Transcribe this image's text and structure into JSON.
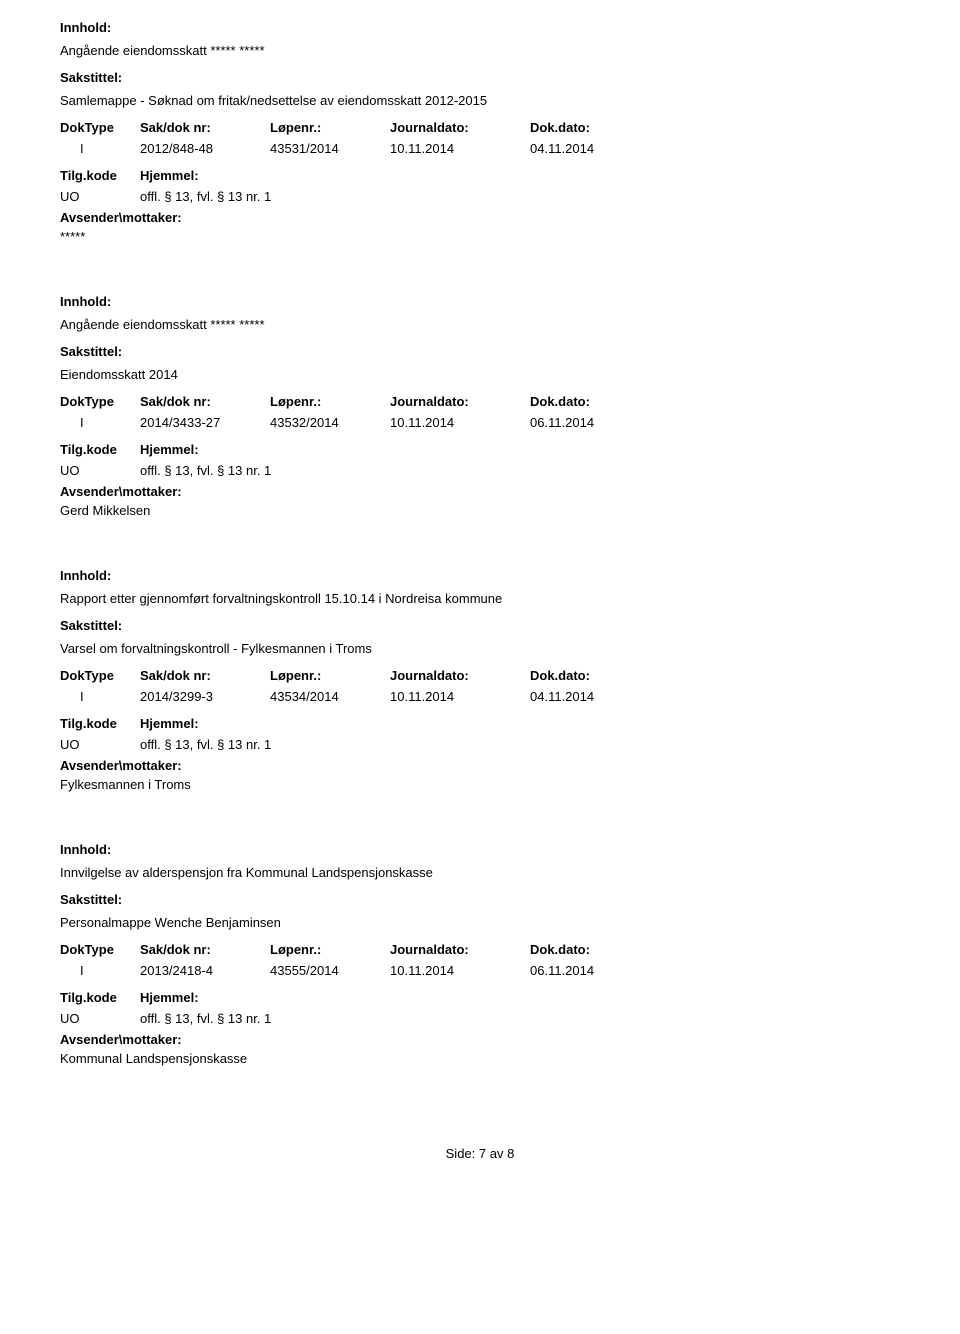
{
  "labels": {
    "innhold": "Innhold:",
    "sakstittel": "Sakstittel:",
    "doktype": "DokType",
    "sakdoknr": "Sak/dok nr:",
    "lopenr": "Løpenr.:",
    "journaldato": "Journaldato:",
    "dokdato": "Dok.dato:",
    "tilgkode": "Tilg.kode",
    "hjemmel": "Hjemmel:",
    "avsender": "Avsender\\mottaker:"
  },
  "records": [
    {
      "innhold": "Angående eiendomsskatt ***** *****",
      "sakstittel": "Samlemappe - Søknad om fritak/nedsettelse av eiendomsskatt 2012-2015",
      "doktype": "I",
      "sakdoknr": "2012/848-48",
      "lopenr": "43531/2014",
      "journaldato": "10.11.2014",
      "dokdato": "04.11.2014",
      "tilgkode": "UO",
      "hjemmel": "offl. § 13, fvl. § 13 nr. 1",
      "avsender": "*****"
    },
    {
      "innhold": "Angående eiendomsskatt ***** *****",
      "sakstittel": "Eiendomsskatt 2014",
      "doktype": "I",
      "sakdoknr": "2014/3433-27",
      "lopenr": "43532/2014",
      "journaldato": "10.11.2014",
      "dokdato": "06.11.2014",
      "tilgkode": "UO",
      "hjemmel": "offl. § 13, fvl. § 13 nr. 1",
      "avsender": "Gerd Mikkelsen"
    },
    {
      "innhold": "Rapport etter gjennomført forvaltningskontroll 15.10.14 i Nordreisa kommune",
      "sakstittel": "Varsel om forvaltningskontroll - Fylkesmannen i Troms",
      "doktype": "I",
      "sakdoknr": "2014/3299-3",
      "lopenr": "43534/2014",
      "journaldato": "10.11.2014",
      "dokdato": "04.11.2014",
      "tilgkode": "UO",
      "hjemmel": "offl. § 13, fvl. § 13 nr. 1",
      "avsender": "Fylkesmannen i Troms"
    },
    {
      "innhold": "Innvilgelse av alderspensjon fra Kommunal Landspensjonskasse",
      "sakstittel": "Personalmappe Wenche Benjaminsen",
      "doktype": "I",
      "sakdoknr": "2013/2418-4",
      "lopenr": "43555/2014",
      "journaldato": "10.11.2014",
      "dokdato": "06.11.2014",
      "tilgkode": "UO",
      "hjemmel": "offl. § 13, fvl. § 13 nr. 1",
      "avsender": "Kommunal Landspensjonskasse"
    }
  ],
  "footer": {
    "prefix": "Side:",
    "page": "7",
    "of": "av",
    "total": "8"
  }
}
